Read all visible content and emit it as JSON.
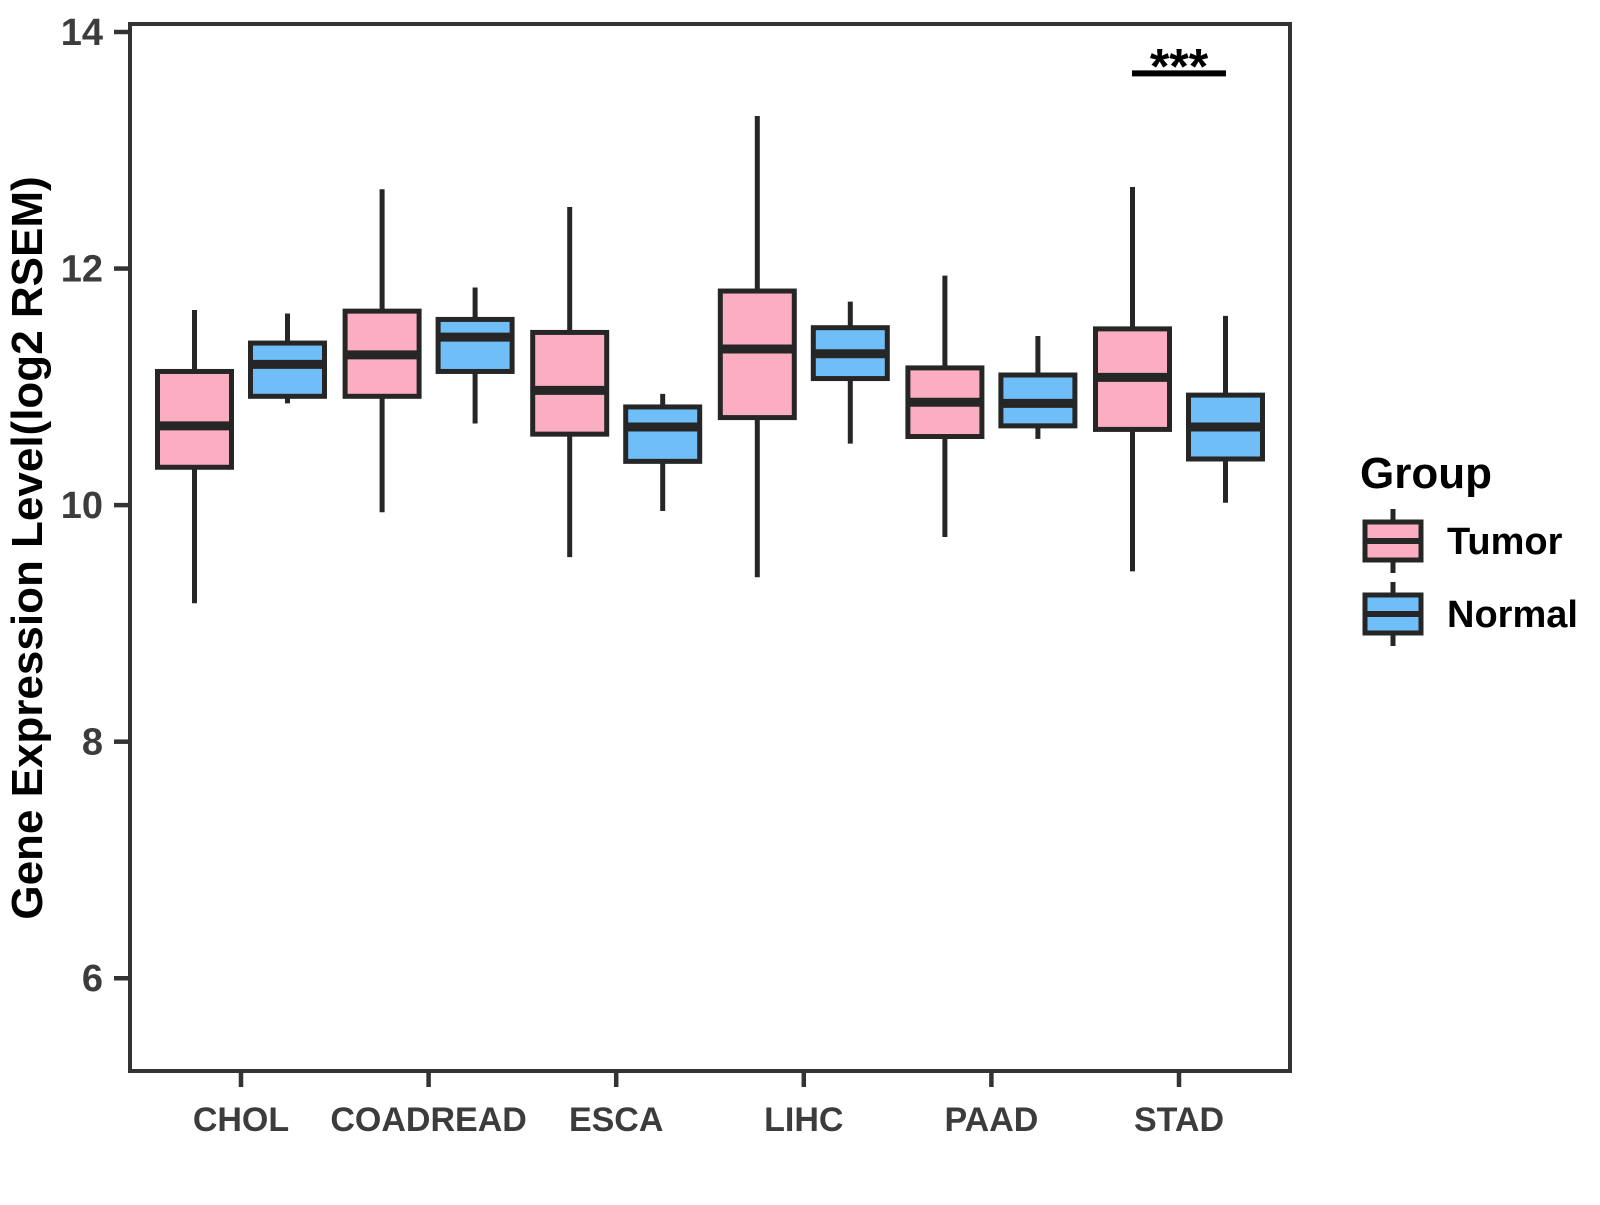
{
  "chart_data": {
    "type": "boxplot",
    "title": "",
    "ylabel": "Gene Expression Level(log2 RSEM)",
    "xlabel": "",
    "categories": [
      "CHOL",
      "COADREAD",
      "ESCA",
      "LIHC",
      "PAAD",
      "STAD"
    ],
    "yticks": [
      6,
      8,
      10,
      12,
      14
    ],
    "ylim": [
      5.2,
      14.1
    ],
    "grid": false,
    "legend": {
      "title": "Group",
      "position": "right",
      "items": [
        "Tumor",
        "Normal"
      ]
    },
    "series": [
      {
        "name": "Tumor",
        "color": "#FBAEC1",
        "boxes": [
          {
            "category": "CHOL",
            "whisker_low": 9.17,
            "q1": 10.32,
            "median": 10.67,
            "q3": 11.13,
            "whisker_high": 11.65
          },
          {
            "category": "COADREAD",
            "whisker_low": 9.94,
            "q1": 10.92,
            "median": 11.27,
            "q3": 11.64,
            "whisker_high": 12.67
          },
          {
            "category": "ESCA",
            "whisker_low": 9.56,
            "q1": 10.6,
            "median": 10.97,
            "q3": 11.46,
            "whisker_high": 12.52
          },
          {
            "category": "LIHC",
            "whisker_low": 9.39,
            "q1": 10.74,
            "median": 11.32,
            "q3": 11.81,
            "whisker_high": 13.29
          },
          {
            "category": "PAAD",
            "whisker_low": 9.73,
            "q1": 10.58,
            "median": 10.87,
            "q3": 11.16,
            "whisker_high": 11.94
          },
          {
            "category": "STAD",
            "whisker_low": 9.44,
            "q1": 10.64,
            "median": 11.08,
            "q3": 11.49,
            "whisker_high": 12.69
          }
        ]
      },
      {
        "name": "Normal",
        "color": "#70BEF8",
        "boxes": [
          {
            "category": "CHOL",
            "whisker_low": 10.86,
            "q1": 10.92,
            "median": 11.19,
            "q3": 11.37,
            "whisker_high": 11.62
          },
          {
            "category": "COADREAD",
            "whisker_low": 10.69,
            "q1": 11.13,
            "median": 11.42,
            "q3": 11.57,
            "whisker_high": 11.84
          },
          {
            "category": "ESCA",
            "whisker_low": 9.95,
            "q1": 10.37,
            "median": 10.66,
            "q3": 10.83,
            "whisker_high": 10.94
          },
          {
            "category": "LIHC",
            "whisker_low": 10.52,
            "q1": 11.07,
            "median": 11.28,
            "q3": 11.5,
            "whisker_high": 11.72
          },
          {
            "category": "PAAD",
            "whisker_low": 10.56,
            "q1": 10.67,
            "median": 10.86,
            "q3": 11.1,
            "whisker_high": 11.43
          },
          {
            "category": "STAD",
            "whisker_low": 10.02,
            "q1": 10.39,
            "median": 10.66,
            "q3": 10.93,
            "whisker_high": 11.6
          }
        ]
      }
    ],
    "annotation": {
      "text": "***",
      "category": "STAD",
      "line_y": 13.65,
      "text_y": 13.82
    },
    "style": {
      "box_border": "#262626",
      "panel_border": "#333333",
      "axis_text": "#3C3C3C",
      "annotation_color": "#000000"
    }
  }
}
